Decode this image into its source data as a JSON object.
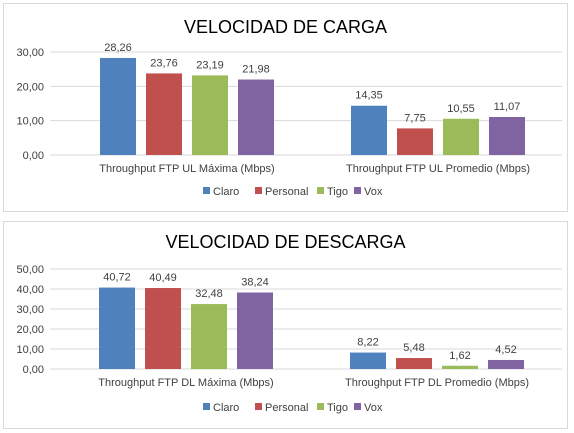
{
  "chart_data": [
    {
      "type": "bar",
      "title": "VELOCIDAD DE CARGA",
      "xlabel": "",
      "ylabel": "",
      "categories": [
        "Throughput FTP UL Máxima (Mbps)",
        "Throughput FTP UL Promedio (Mbps)"
      ],
      "series": [
        {
          "name": "Claro",
          "color": "#4f81bd",
          "values": [
            28.26,
            14.35
          ],
          "labels": [
            "28,26",
            "14,35"
          ]
        },
        {
          "name": "Personal",
          "color": "#c0504d",
          "values": [
            23.76,
            7.75
          ],
          "labels": [
            "23,76",
            "7,75"
          ]
        },
        {
          "name": "Tigo",
          "color": "#9bbb59",
          "values": [
            23.19,
            10.55
          ],
          "labels": [
            "23,19",
            "10,55"
          ]
        },
        {
          "name": "Vox",
          "color": "#8064a2",
          "values": [
            21.98,
            11.07
          ],
          "labels": [
            "21,98",
            "11,07"
          ]
        }
      ],
      "ylim": [
        0,
        30
      ],
      "yticks": [
        0,
        10,
        20,
        30
      ],
      "ytick_labels": [
        "0,00",
        "10,00",
        "20,00",
        "30,00"
      ],
      "grid": true,
      "legend_position": "bottom"
    },
    {
      "type": "bar",
      "title": "VELOCIDAD DE DESCARGA",
      "xlabel": "",
      "ylabel": "",
      "categories": [
        "Throughput FTP DL Máxima (Mbps)",
        "Throughput FTP DL Promedio (Mbps)"
      ],
      "series": [
        {
          "name": "Claro",
          "color": "#4f81bd",
          "values": [
            40.72,
            8.22
          ],
          "labels": [
            "40,72",
            "8,22"
          ]
        },
        {
          "name": "Personal",
          "color": "#c0504d",
          "values": [
            40.49,
            5.48
          ],
          "labels": [
            "40,49",
            "5,48"
          ]
        },
        {
          "name": "Tigo",
          "color": "#9bbb59",
          "values": [
            32.48,
            1.62
          ],
          "labels": [
            "32,48",
            "1,62"
          ]
        },
        {
          "name": "Vox",
          "color": "#8064a2",
          "values": [
            38.24,
            4.52
          ],
          "labels": [
            "38,24",
            "4,52"
          ]
        }
      ],
      "ylim": [
        0,
        50
      ],
      "yticks": [
        0,
        10,
        20,
        30,
        40,
        50
      ],
      "ytick_labels": [
        "0,00",
        "10,00",
        "20,00",
        "30,00",
        "40,00",
        "50,00"
      ],
      "grid": true,
      "legend_position": "bottom"
    }
  ]
}
